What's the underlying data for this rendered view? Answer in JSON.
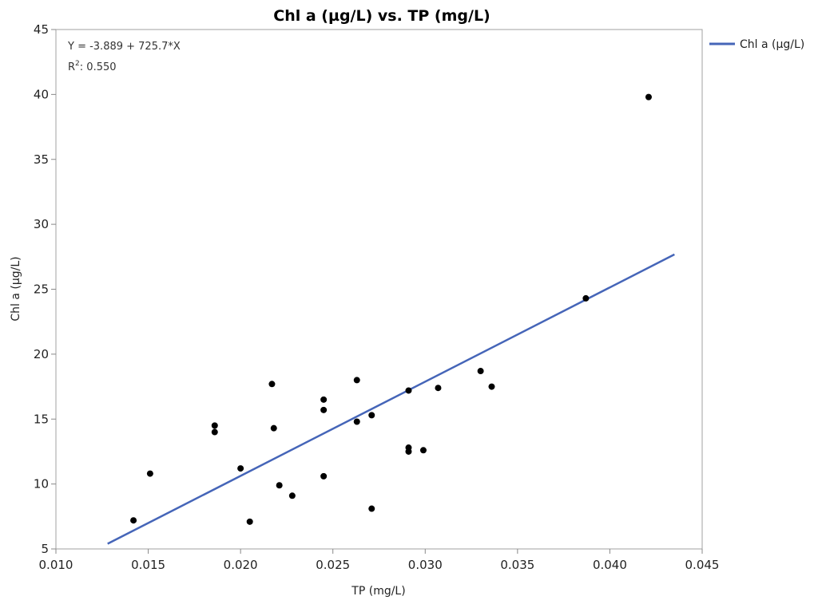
{
  "chart_data": {
    "type": "scatter",
    "title": "Chl a (µg/L) vs. TP (mg/L)",
    "xlabel": "TP (mg/L)",
    "ylabel": "Chl a (µg/L)",
    "xlim": [
      0.01,
      0.045
    ],
    "ylim": [
      5,
      45
    ],
    "xticks": [
      "0.010",
      "0.015",
      "0.020",
      "0.025",
      "0.030",
      "0.035",
      "0.040",
      "0.045"
    ],
    "yticks": [
      "5",
      "10",
      "15",
      "20",
      "25",
      "30",
      "35",
      "40",
      "45"
    ],
    "grid": false,
    "legend": {
      "position": "right",
      "entries": [
        "Chl a (µg/L)"
      ]
    },
    "annotations": {
      "equation": "Y = -3.889 + 725.7*X",
      "r2_label": "R",
      "r2_sup": "2",
      "r2_value": ": 0.550"
    },
    "points": [
      {
        "x": 0.0142,
        "y": 7.2
      },
      {
        "x": 0.0151,
        "y": 10.8
      },
      {
        "x": 0.0186,
        "y": 14.5
      },
      {
        "x": 0.0186,
        "y": 14.0
      },
      {
        "x": 0.02,
        "y": 11.2
      },
      {
        "x": 0.0205,
        "y": 7.1
      },
      {
        "x": 0.0217,
        "y": 17.7
      },
      {
        "x": 0.0218,
        "y": 14.3
      },
      {
        "x": 0.0221,
        "y": 9.9
      },
      {
        "x": 0.0228,
        "y": 9.1
      },
      {
        "x": 0.0245,
        "y": 16.5
      },
      {
        "x": 0.0245,
        "y": 15.7
      },
      {
        "x": 0.0245,
        "y": 10.6
      },
      {
        "x": 0.0263,
        "y": 18.0
      },
      {
        "x": 0.0263,
        "y": 14.8
      },
      {
        "x": 0.0271,
        "y": 15.3
      },
      {
        "x": 0.0271,
        "y": 8.1
      },
      {
        "x": 0.0291,
        "y": 17.2
      },
      {
        "x": 0.0291,
        "y": 12.8
      },
      {
        "x": 0.0291,
        "y": 12.5
      },
      {
        "x": 0.0299,
        "y": 12.6
      },
      {
        "x": 0.0307,
        "y": 17.4
      },
      {
        "x": 0.033,
        "y": 18.7
      },
      {
        "x": 0.0336,
        "y": 17.5
      },
      {
        "x": 0.0387,
        "y": 24.3
      },
      {
        "x": 0.0421,
        "y": 39.8
      }
    ],
    "fit_line": {
      "name": "Chl a (µg/L)",
      "intercept": -3.889,
      "slope": 725.7,
      "x_range": [
        0.0128,
        0.0435
      ],
      "color": "#4565b8"
    },
    "point_color": "#000000"
  }
}
